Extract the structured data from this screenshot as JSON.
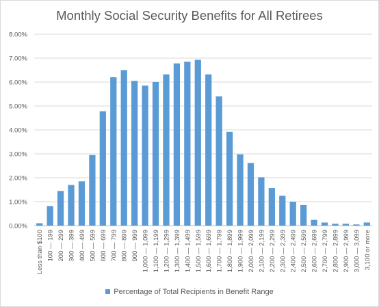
{
  "chart_data": {
    "type": "bar",
    "title": "Monthly Social Security Benefits for All Retirees",
    "xlabel": "",
    "ylabel": "",
    "ylim": [
      0,
      8
    ],
    "yticks": [
      "0.00%",
      "1.00%",
      "2.00%",
      "3.00%",
      "4.00%",
      "5.00%",
      "6.00%",
      "7.00%",
      "8.00%"
    ],
    "grid": true,
    "legend_position": "bottom",
    "bar_color": "#5b9bd5",
    "categories": [
      "Less than $100",
      "100 — 199",
      "200 — 299",
      "300 — 399",
      "400 — 499",
      "500 — 599",
      "600 — 699",
      "700 — 799",
      "800 — 899",
      "900 — 999",
      "1,000 — 1,099",
      "1,100 — 1,199",
      "1,200 — 1,299",
      "1,300 — 1,399",
      "1,400 — 1,499",
      "1,500 — 1,599",
      "1,600 — 1,699",
      "1,700 — 1,799",
      "1,800 — 1,899",
      "1,900 — 1,999",
      "2,000 — 2,099",
      "2,100 — 2,199",
      "2,200 — 2,299",
      "2,300 — 2,399",
      "2,400 — 2,499",
      "2,500 — 2,599",
      "2,600 — 2,699",
      "2,700 — 2,799",
      "2,800 — 2,899",
      "2,900 — 2,999",
      "3,000 — 3,099",
      "3,100 or more"
    ],
    "series": [
      {
        "name": "Percentage of Total Recipients in Benefit Range",
        "values": [
          0.1,
          0.82,
          1.45,
          1.7,
          1.85,
          2.95,
          4.78,
          6.2,
          6.5,
          6.05,
          5.85,
          6.0,
          6.32,
          6.78,
          6.85,
          6.93,
          6.32,
          5.4,
          3.92,
          2.98,
          2.62,
          2.02,
          1.57,
          1.25,
          1.0,
          0.86,
          0.24,
          0.13,
          0.08,
          0.08,
          0.05,
          0.13
        ]
      }
    ]
  }
}
